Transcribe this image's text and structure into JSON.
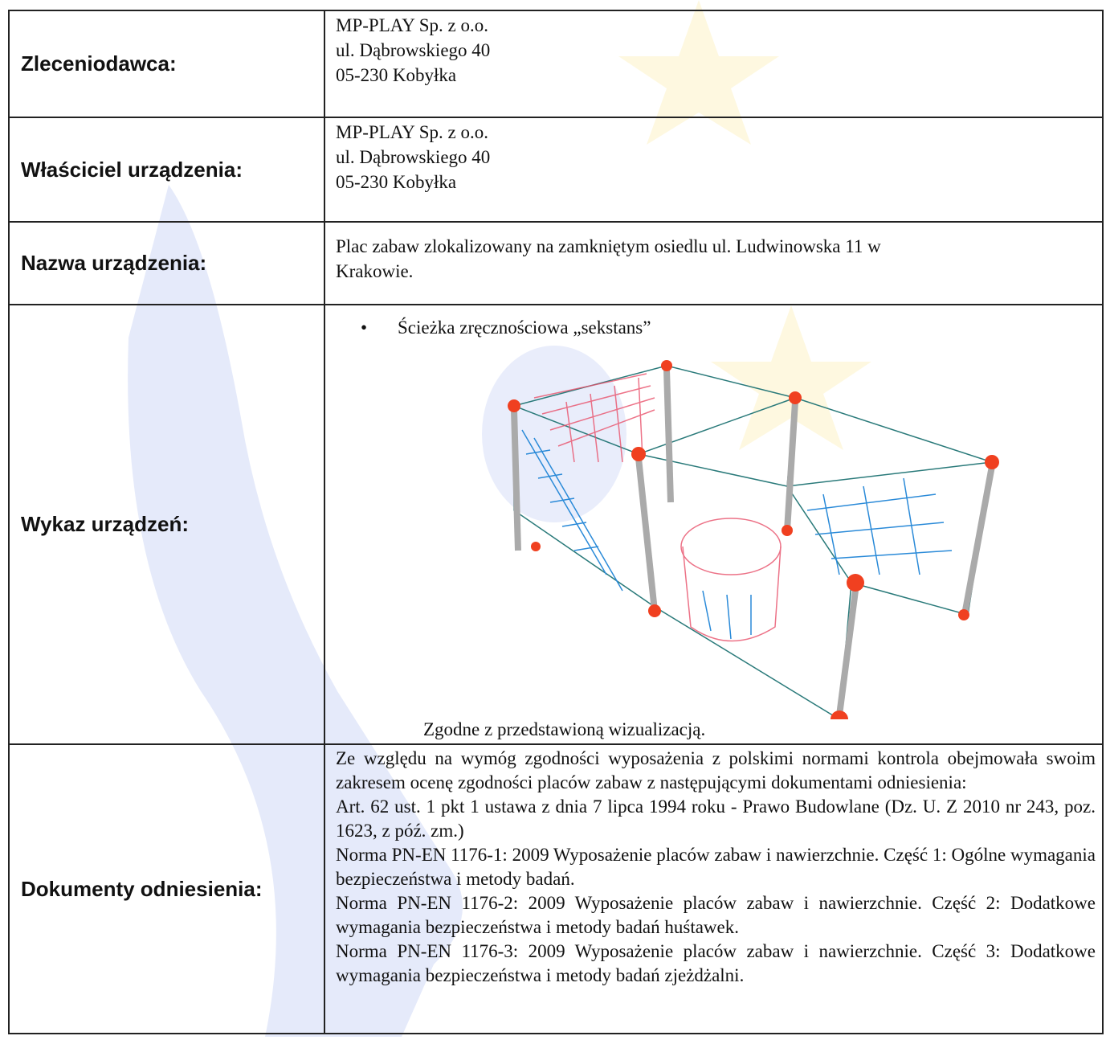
{
  "table": {
    "rows": [
      {
        "label": "Zleceniodawca:",
        "lines": [
          "MP-PLAY Sp. z o.o.",
          "ul. Dąbrowskiego 40",
          "05-230 Kobyłka"
        ]
      },
      {
        "label": "Właściciel urządzenia:",
        "lines": [
          "MP-PLAY Sp. z o.o.",
          "ul. Dąbrowskiego 40",
          "05-230 Kobyłka"
        ]
      },
      {
        "label": "Nazwa urządzenia:",
        "lines": [
          "Plac zabaw zlokalizowany na zamkniętym osiedlu ul. Ludwinowska 11 w",
          "Krakowie."
        ]
      },
      {
        "label": "Wykaz urządzeń:",
        "bullet": "Ścieżka zręcznościowa „sekstans”",
        "caption": "Zgodne z przedstawioną wizualizacją."
      },
      {
        "label": "Dokumenty odniesienia:",
        "paragraphs": [
          "Ze względu na wymóg zgodności wyposażenia z polskimi normami kontrola obejmowała swoim zakresem ocenę zgodności placów zabaw z następującymi dokumentami odniesienia:",
          "Art. 62 ust. 1 pkt 1 ustawa z dnia 7 lipca 1994 roku - Prawo Budowlane (Dz. U. Z 2010 nr 243, poz. 1623, z póź. zm.)",
          "Norma PN-EN 1176-1: 2009 Wyposażenie placów zabaw i nawierzchnie. Część 1: Ogólne wymagania bezpieczeństwa i metody badań.",
          "Norma PN-EN 1176-2: 2009 Wyposażenie placów zabaw i nawierzchnie. Część 2: Dodatkowe wymagania bezpieczeństwa i metody badań huśtawek.",
          "Norma PN-EN 1176-3: 2009 Wyposażenie placów zabaw i nawierzchnie. Część 3: Dodatkowe wymagania bezpieczeństwa i metody badań zjeżdżalni."
        ]
      }
    ]
  }
}
